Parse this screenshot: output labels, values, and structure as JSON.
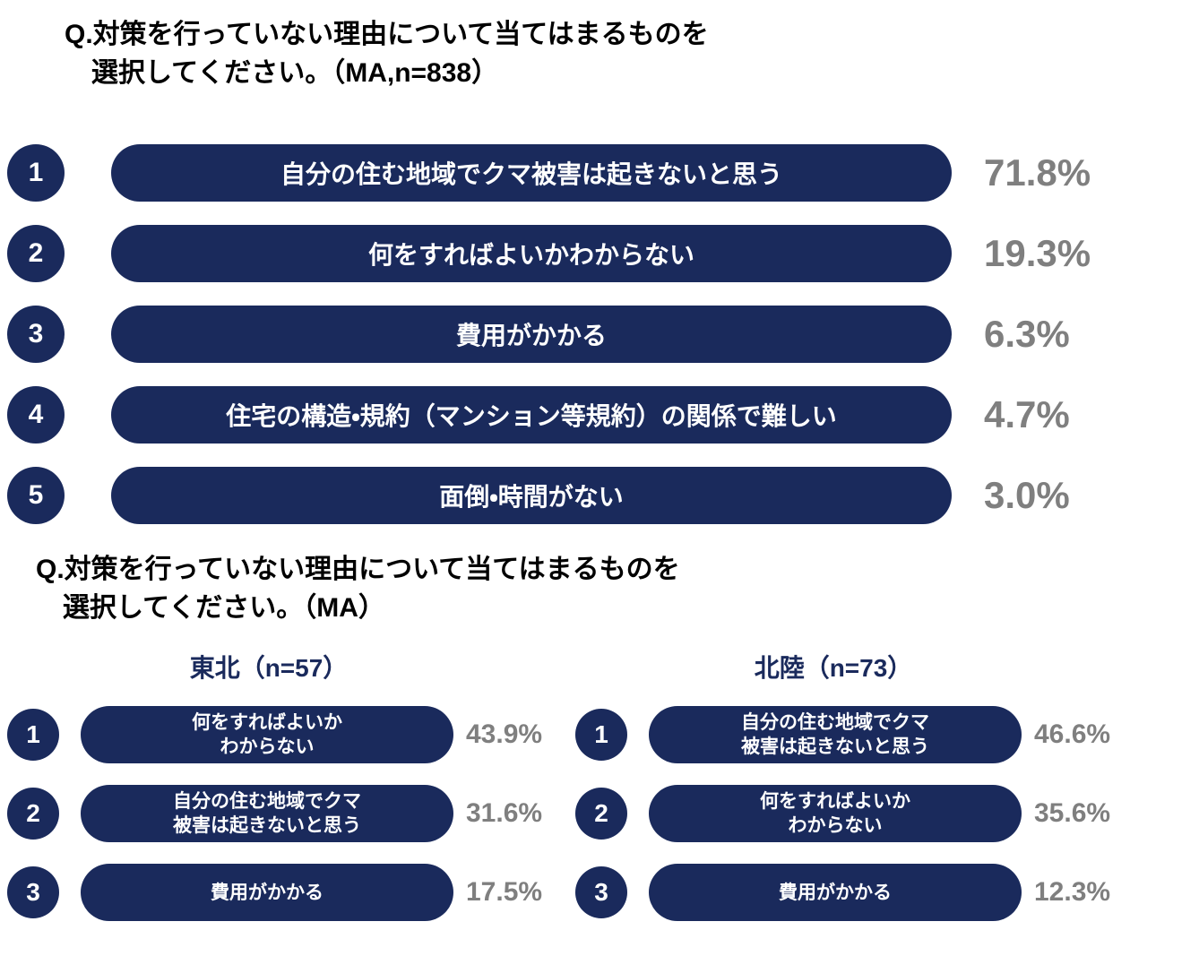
{
  "colors": {
    "navy": "#1a2a5c",
    "percent_gray": "#7f7f7f",
    "title_black": "#000000"
  },
  "section1": {
    "title_line1": "Q.対策を行っていない理由について当てはまるものを",
    "title_line2": "選択してください。（MA,n=838）",
    "items": [
      {
        "rank": "1",
        "label": "自分の住む地域でクマ被害は起きないと思う",
        "percent": "71.8%"
      },
      {
        "rank": "2",
        "label": "何をすればよいかわからない",
        "percent": "19.3%"
      },
      {
        "rank": "3",
        "label": "費用がかかる",
        "percent": "6.3%"
      },
      {
        "rank": "4",
        "label": "住宅の構造・規約（マンション等規約）の関係で難しい",
        "percent": "4.7%"
      },
      {
        "rank": "5",
        "label": "面倒・時間がない",
        "percent": "3.0%"
      }
    ]
  },
  "section2": {
    "title_line1": "Q.対策を行っていない理由について当てはまるものを",
    "title_line2": "選択してください。（MA）",
    "groups": [
      {
        "header": "東北（n=57）",
        "items": [
          {
            "rank": "1",
            "label": "何をすればよいか\nわからない",
            "percent": "43.9%"
          },
          {
            "rank": "2",
            "label": "自分の住む地域でクマ\n被害は起きないと思う",
            "percent": "31.6%"
          },
          {
            "rank": "3",
            "label": "費用がかかる",
            "percent": "17.5%"
          }
        ]
      },
      {
        "header": "北陸（n=73）",
        "items": [
          {
            "rank": "1",
            "label": "自分の住む地域でクマ\n被害は起きないと思う",
            "percent": "46.6%"
          },
          {
            "rank": "2",
            "label": "何をすればよいか\nわからない",
            "percent": "35.6%"
          },
          {
            "rank": "3",
            "label": "費用がかかる",
            "percent": "12.3%"
          }
        ]
      }
    ]
  },
  "chart_data": [
    {
      "type": "bar",
      "title": "Q.対策を行っていない理由について当てはまるものを選択してください。（MA,n=838）",
      "categories": [
        "自分の住む地域でクマ被害は起きないと思う",
        "何をすればよいかわからない",
        "費用がかかる",
        "住宅の構造・規約（マンション等規約）の関係で難しい",
        "面倒・時間がない"
      ],
      "values": [
        71.8,
        19.3,
        6.3,
        4.7,
        3.0
      ],
      "unit": "%",
      "layout": "ranked horizontal pills, rank badges 1-5, percent labels right"
    },
    {
      "type": "bar",
      "title": "Q.対策を行っていない理由について当てはまるものを選択してください。（MA） — 東北（n=57）",
      "categories": [
        "何をすればよいかわからない",
        "自分の住む地域でクマ被害は起きないと思う",
        "費用がかかる"
      ],
      "values": [
        43.9,
        31.6,
        17.5
      ],
      "unit": "%",
      "layout": "ranked horizontal pills, rank badges 1-3, percent labels right"
    },
    {
      "type": "bar",
      "title": "Q.対策を行っていない理由について当てはまるものを選択してください。（MA） — 北陸（n=73）",
      "categories": [
        "自分の住む地域でクマ被害は起きないと思う",
        "何をすればよいかわからない",
        "費用がかかる"
      ],
      "values": [
        46.6,
        35.6,
        12.3
      ],
      "unit": "%",
      "layout": "ranked horizontal pills, rank badges 1-3, percent labels right"
    }
  ]
}
